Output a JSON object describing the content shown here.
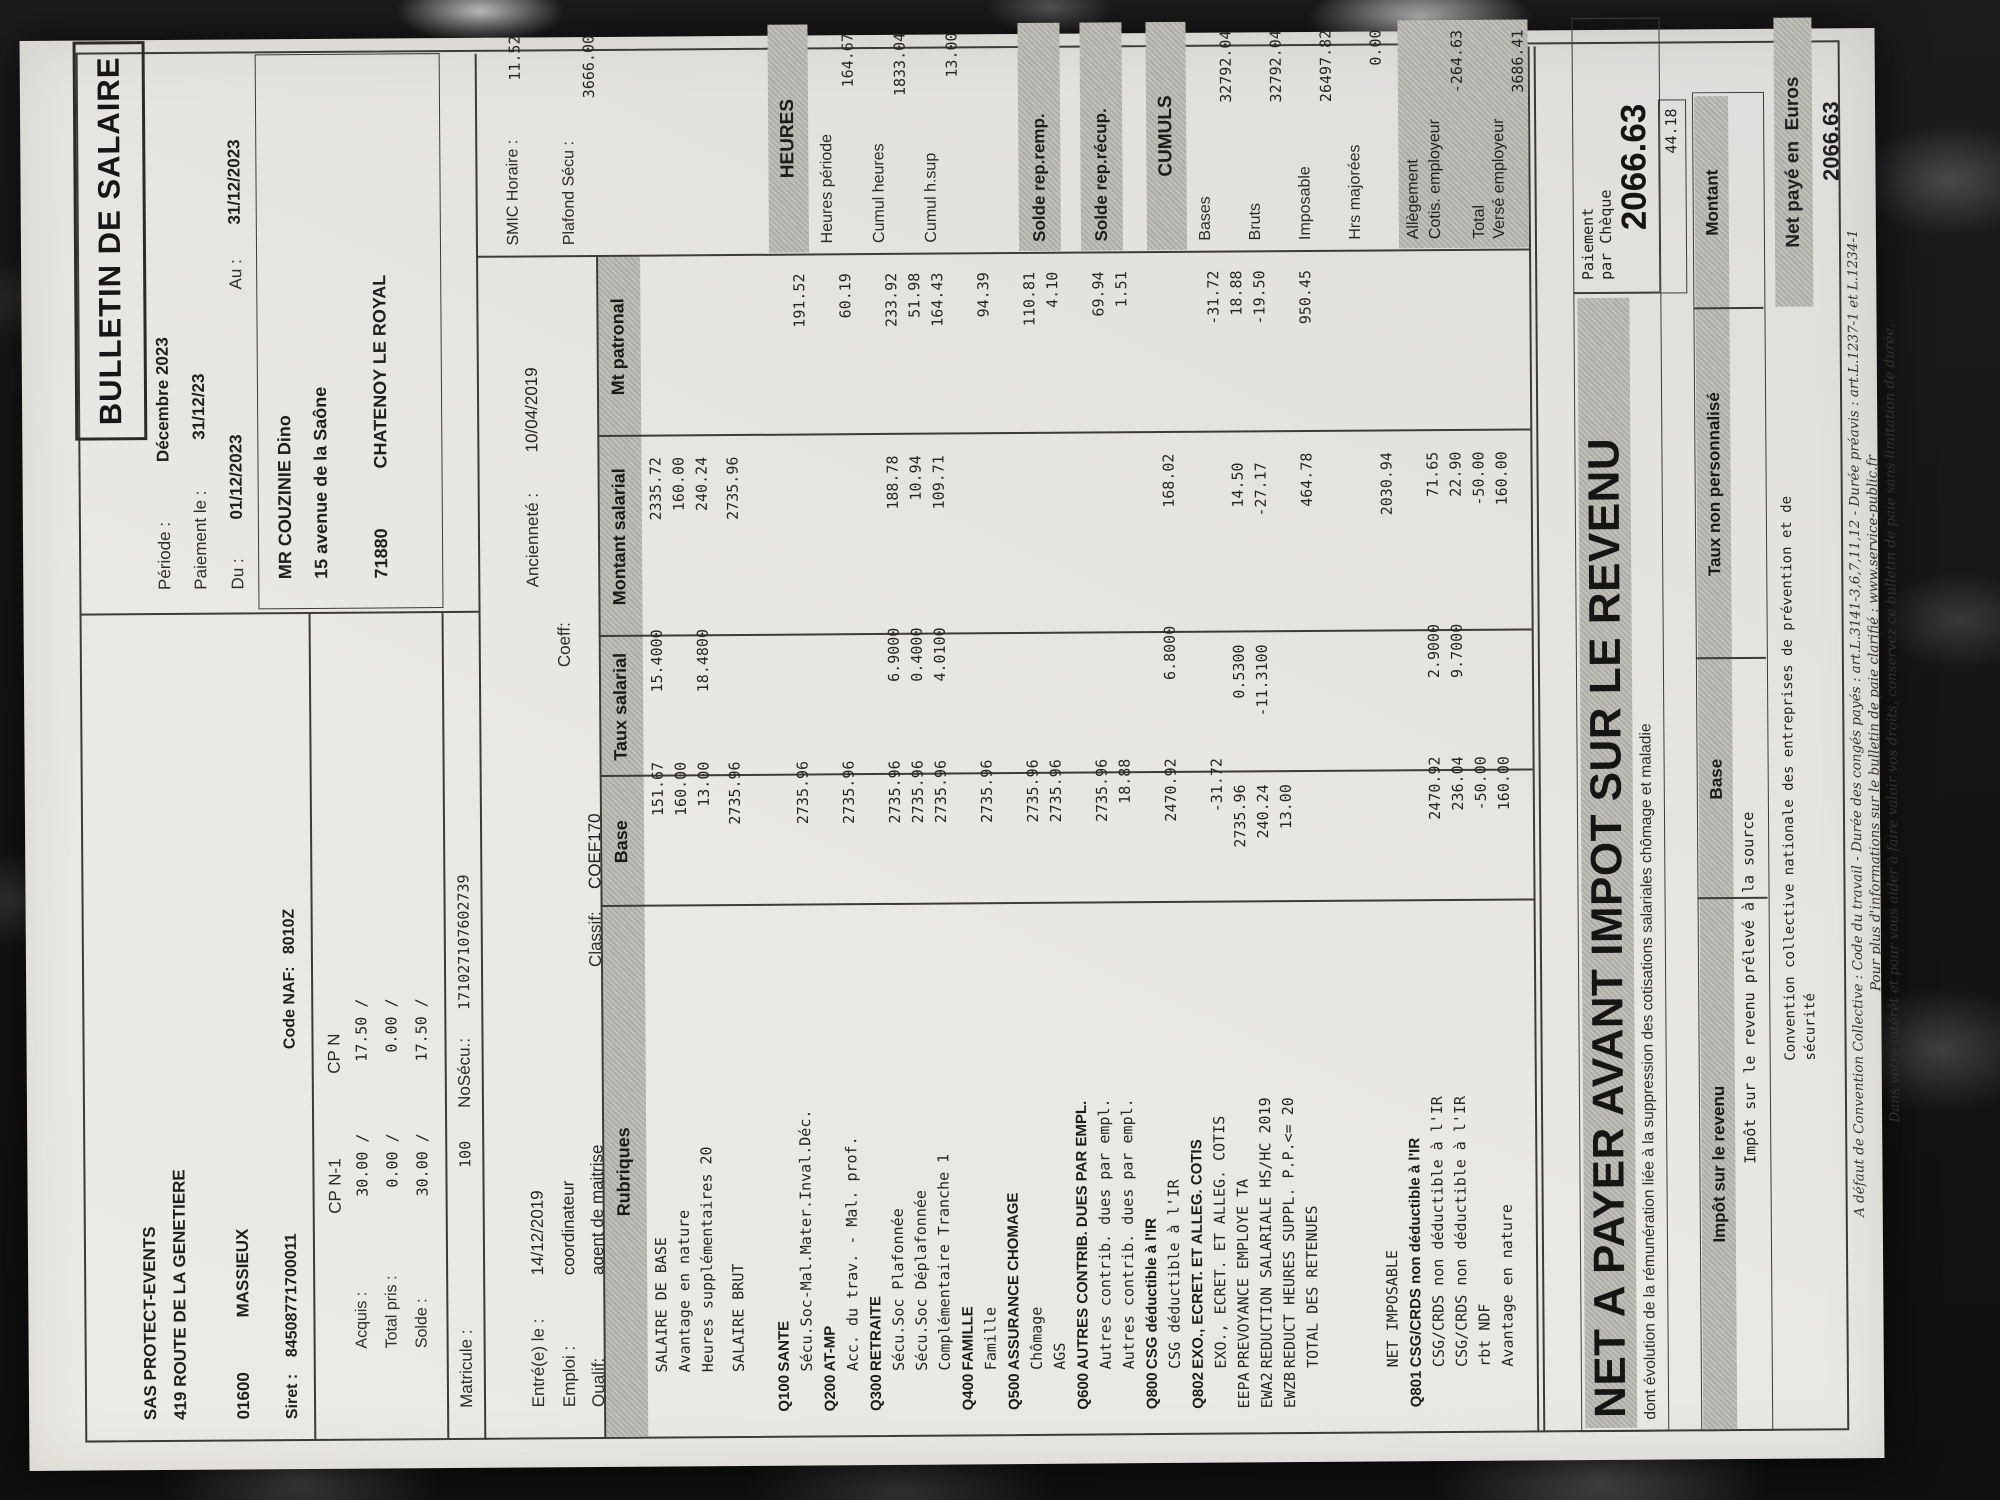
{
  "title": "BULLETIN DE SALAIRE",
  "company": {
    "name": "SAS PROTECT-EVENTS",
    "address": "419 ROUTE DE LA GENETIERE",
    "zip": "01600",
    "city": "MASSIEUX",
    "siret_label": "Siret :",
    "siret": "84508771700011",
    "naf_label": "Code NAF:",
    "naf": "8010Z"
  },
  "period": {
    "periode_label": "Période :",
    "periode": "Décembre 2023",
    "paiement_label": "Paiement le :",
    "paiement": "31/12/23",
    "du_label": "Du :",
    "du": "01/12/2023",
    "au_label": "Au :",
    "au": "31/12/2023"
  },
  "employee": {
    "name": "MR COUZINIE Dino",
    "street": "15 avenue de la Saône",
    "zip": "71880",
    "city": "CHATENOY LE ROYAL"
  },
  "cp": {
    "col1": "CP N-1",
    "col2": "CP N",
    "rows": [
      {
        "label": "Acquis :",
        "n1": "30.00 /",
        "n": "17.50 /"
      },
      {
        "label": "Total pris :",
        "n1": "0.00 /",
        "n": "0.00 /"
      },
      {
        "label": "Solde :",
        "n1": "30.00 /",
        "n": "17.50 /"
      }
    ]
  },
  "ids": {
    "matricule_label": "Matricule :",
    "matricule": "100",
    "nosecu_label": "NoSécu.:",
    "nosecu": "171027107602739",
    "entre_label": "Entré(e) le :",
    "entre": "14/12/2019",
    "anciennete_label": "Ancienneté :",
    "anciennete": "10/04/2019",
    "emploi_label": "Emploi :",
    "emploi": "coordinateur",
    "coeff_label": "Coeff:",
    "qualif_label": "Qualif:",
    "qualif": "agent de maitrise",
    "classif_label": "Classif:",
    "classif": "COEF170"
  },
  "table": {
    "headers": [
      "Rubriques",
      "Base",
      "Taux salarial",
      "Montant salarial",
      "Mt patronal"
    ],
    "rows": [
      {
        "t": "item",
        "label": "SALAIRE DE BASE",
        "base": "151.67",
        "taux": "15.4000",
        "sal": "2335.72",
        "pat": ""
      },
      {
        "t": "item",
        "label": "Avantage en nature",
        "base": "160.00",
        "taux": "",
        "sal": "160.00",
        "pat": ""
      },
      {
        "t": "item",
        "label": "Heures supplémentaires 20",
        "base": "13.00",
        "taux": "18.4800",
        "sal": "240.24",
        "pat": ""
      },
      {
        "t": "sp"
      },
      {
        "t": "item",
        "label": "SALAIRE BRUT",
        "base": "2735.96",
        "taux": "",
        "sal": "2735.96",
        "pat": ""
      },
      {
        "t": "sp2"
      },
      {
        "t": "sec",
        "code": "Q100",
        "label": "SANTE"
      },
      {
        "t": "item",
        "label": "Sécu.Soc-Mal.Mater.Inval.Déc.",
        "base": "2735.96",
        "taux": "",
        "sal": "",
        "pat": "191.52"
      },
      {
        "t": "sec",
        "code": "Q200",
        "label": "AT-MP"
      },
      {
        "t": "item",
        "label": "Acc. du trav. - Mal. prof.",
        "base": "2735.96",
        "taux": "",
        "sal": "",
        "pat": "60.19"
      },
      {
        "t": "sec",
        "code": "Q300",
        "label": "RETRAITE"
      },
      {
        "t": "item",
        "label": "Sécu.Soc Plafonnée",
        "base": "2735.96",
        "taux": "6.9000",
        "sal": "188.78",
        "pat": "233.92"
      },
      {
        "t": "item",
        "label": "Sécu.Soc Déplafonnée",
        "base": "2735.96",
        "taux": "0.4000",
        "sal": "10.94",
        "pat": "51.98"
      },
      {
        "t": "item",
        "label": "Complémentaire Tranche 1",
        "base": "2735.96",
        "taux": "4.0100",
        "sal": "109.71",
        "pat": "164.43"
      },
      {
        "t": "sec",
        "code": "Q400",
        "label": "FAMILLE"
      },
      {
        "t": "item",
        "label": "Famille",
        "base": "2735.96",
        "taux": "",
        "sal": "",
        "pat": "94.39"
      },
      {
        "t": "sec",
        "code": "Q500",
        "label": "ASSURANCE CHOMAGE"
      },
      {
        "t": "item",
        "label": "Chômage",
        "base": "2735.96",
        "taux": "",
        "sal": "",
        "pat": "110.81"
      },
      {
        "t": "item",
        "label": "AGS",
        "base": "2735.96",
        "taux": "",
        "sal": "",
        "pat": "4.10"
      },
      {
        "t": "sec",
        "code": "Q600",
        "label": "AUTRES CONTRIB. DUES PAR EMPL."
      },
      {
        "t": "item",
        "label": "Autres contrib. dues par empl.",
        "base": "2735.96",
        "taux": "",
        "sal": "",
        "pat": "69.94"
      },
      {
        "t": "item",
        "label": "Autres contrib. dues par empl.",
        "base": "18.88",
        "taux": "",
        "sal": "",
        "pat": "1.51"
      },
      {
        "t": "sec",
        "code": "Q800",
        "label": "CSG déductible à l'IR"
      },
      {
        "t": "item",
        "label": "CSG déductible à l'IR",
        "base": "2470.92",
        "taux": "6.8000",
        "sal": "168.02",
        "pat": ""
      },
      {
        "t": "sec",
        "code": "Q802",
        "label": "EXO., ECRET. ET ALLEG. COTIS"
      },
      {
        "t": "item",
        "label": "EXO., ECRET. ET ALLEG. COTIS",
        "base": "-31.72",
        "taux": "",
        "sal": "",
        "pat": "-31.72"
      },
      {
        "t": "item2",
        "code": "EEPA",
        "label": "PREVOYANCE EMPLOYE TA",
        "base": "2735.96",
        "taux": "0.5300",
        "sal": "14.50",
        "pat": "18.88"
      },
      {
        "t": "item2",
        "code": "EWA2",
        "label": "REDUCTION SALARIALE HS/HC 2019",
        "base": "240.24",
        "taux": "-11.3100",
        "sal": "-27.17",
        "pat": "-19.50"
      },
      {
        "t": "item2",
        "code": "EWZB",
        "label": "REDUCT HEURES SUPPL. P.P.<= 20",
        "base": "13.00",
        "taux": "",
        "sal": "",
        "pat": ""
      },
      {
        "t": "item",
        "label": "TOTAL DES RETENUES",
        "base": "",
        "taux": "",
        "sal": "464.78",
        "pat": "950.45"
      },
      {
        "t": "sp3"
      },
      {
        "t": "item",
        "label": "NET IMPOSABLE",
        "base": "",
        "taux": "",
        "sal": "2030.94",
        "pat": ""
      },
      {
        "t": "sec",
        "code": "Q801",
        "label": "CSG/CRDS non déductible à l'IR"
      },
      {
        "t": "item",
        "label": "CSG/CRDS non déductible à l'IR",
        "base": "2470.92",
        "taux": "2.9000",
        "sal": "71.65",
        "pat": ""
      },
      {
        "t": "item",
        "label": "CSG/CRDS non déductible à l'IR",
        "base": "236.04",
        "taux": "9.7000",
        "sal": "22.90",
        "pat": ""
      },
      {
        "t": "item",
        "label": "rbt NDF",
        "base": "-50.00",
        "taux": "",
        "sal": "-50.00",
        "pat": ""
      },
      {
        "t": "item",
        "label": "Avantage en nature",
        "base": "160.00",
        "taux": "",
        "sal": "160.00",
        "pat": ""
      }
    ]
  },
  "panel": {
    "smic_label": "SMIC Horaire :",
    "smic": "11.52",
    "plafond_label": "Plafond Sécu :",
    "plafond": "3666.00",
    "heures_title": "HEURES",
    "heures": [
      {
        "label": "Heures période",
        "value": "164.67"
      },
      {
        "label": "Cumul heures",
        "value": "1833.04"
      },
      {
        "label": "Cumul h.sup",
        "value": "13.00"
      }
    ],
    "solde1": "Solde rep.remp.",
    "solde2": "Solde rep.récup.",
    "cumuls_title": "CUMULS",
    "cumuls": [
      {
        "label": "Bases",
        "value": "32792.04"
      },
      {
        "label": "Bruts",
        "value": "32792.04"
      },
      {
        "label": "Imposable",
        "value": "26497.82"
      },
      {
        "label": "Hrs majorées",
        "value": "0.00"
      }
    ],
    "employer_box": {
      "l1": "Allègement",
      "l2": "Cotis. employeur",
      "v2": "-264.63",
      "l3": "Total",
      "l4": "Versé employeur",
      "v4": "3686.41"
    }
  },
  "banner": {
    "text": "NET A PAYER AVANT IMPOT SUR LE REVENU",
    "subtext": "dont évolution de la rémunération liée à la suppression des cotisations salariales chômage et maladie",
    "payment_l1": "Paiement",
    "payment_l2": "par Chèque",
    "amount": "2066.63",
    "tax_amount": "44.18"
  },
  "tax": {
    "headers": [
      "Impôt sur le revenu",
      "Base",
      "Taux non personnalisé",
      "Montant"
    ],
    "row_label": "Impôt sur le revenu prélevé à la source"
  },
  "net_paid": {
    "label": "Net payé en  Euros",
    "amount": "2066.63"
  },
  "footer": {
    "convention_l1": "Convention collective nationale des entreprises de prévention et de",
    "convention_l2": "sécurité",
    "legal": [
      "A défaut de Convention Collective : Code du travail - Durée des congés payés : art.L.3141-3,6,7,11,12 - Durée préavis : art.L.1237-1 et L.1234-1",
      "Pour plus d'informations sur le bulletin de paie clarifié : www.service-public.fr",
      "Dans votre intérêt et pour vous aider à faire valoir vos droits, conservez ce bulletin de paie sans limitation de durée."
    ]
  }
}
